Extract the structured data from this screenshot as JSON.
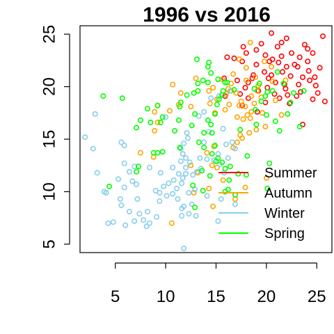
{
  "chart_data": {
    "type": "scatter",
    "title": "1996 vs 2016",
    "xlabel": "",
    "ylabel": "",
    "xlim": [
      1.5,
      26.5
    ],
    "ylim": [
      4.2,
      25.8
    ],
    "xticks": [
      5,
      10,
      15,
      20,
      25
    ],
    "yticks": [
      5,
      10,
      15,
      20,
      25
    ],
    "grid": false,
    "legend_position": "bottom-right",
    "series": [
      {
        "name": "Summer",
        "color": "#ff0000",
        "points": [
          [
            20.5,
            25.1
          ],
          [
            22,
            24.6
          ],
          [
            21.5,
            24.2
          ],
          [
            23.8,
            24
          ],
          [
            21.1,
            23.8
          ],
          [
            19,
            23.5
          ],
          [
            24.1,
            23.6
          ],
          [
            18,
            23.2
          ],
          [
            19.9,
            23
          ],
          [
            23.3,
            22.8
          ],
          [
            25.6,
            24.8
          ],
          [
            24.6,
            23.2
          ],
          [
            20.6,
            22.6
          ],
          [
            21.2,
            22.3
          ],
          [
            22,
            21.9
          ],
          [
            23.1,
            21.9
          ],
          [
            24.1,
            22.4
          ],
          [
            25.3,
            21.8
          ],
          [
            19,
            22.1
          ],
          [
            17.6,
            22.4
          ],
          [
            16.8,
            22.7
          ],
          [
            19.8,
            21.4
          ],
          [
            20.5,
            21.1
          ],
          [
            21.6,
            21.4
          ],
          [
            22.4,
            21
          ],
          [
            23.6,
            20.9
          ],
          [
            24.3,
            20.6
          ],
          [
            18.6,
            20.8
          ],
          [
            17.1,
            20.6
          ],
          [
            15.8,
            20.8
          ],
          [
            20.9,
            20.4
          ],
          [
            21.8,
            20.2
          ],
          [
            23.2,
            20.2
          ],
          [
            24.9,
            20.1
          ],
          [
            17.9,
            19.9
          ],
          [
            19.2,
            19.6
          ],
          [
            20.8,
            19.3
          ],
          [
            22.1,
            19.2
          ],
          [
            23.4,
            19.5
          ],
          [
            25.1,
            19.4
          ],
          [
            18.2,
            18.9
          ],
          [
            21.3,
            18.9
          ],
          [
            24.6,
            18.8
          ],
          [
            17.6,
            18.2
          ],
          [
            19.9,
            18.5
          ],
          [
            22.3,
            18.4
          ],
          [
            23.6,
            16.4
          ],
          [
            19.1,
            17.6
          ],
          [
            17.4,
            19.3
          ],
          [
            15.9,
            19.1
          ],
          [
            20.2,
            20.8
          ],
          [
            22.8,
            22.1
          ],
          [
            24.8,
            20.9
          ],
          [
            18.7,
            21.1
          ],
          [
            21.5,
            22.9
          ],
          [
            20.1,
            19.9
          ],
          [
            23,
            19.1
          ],
          [
            25.8,
            18.6
          ],
          [
            18.2,
            20.4
          ],
          [
            21.9,
            19.8
          ],
          [
            16.1,
            22.8
          ],
          [
            20.3,
            22.4
          ],
          [
            22.5,
            23.2
          ],
          [
            24.2,
            21.5
          ],
          [
            19.5,
            24.1
          ],
          [
            17.7,
            23.8
          ]
        ]
      },
      {
        "name": "Autumn",
        "color": "#ffa500",
        "points": [
          [
            10.6,
            7
          ],
          [
            7.5,
            13.7
          ],
          [
            8.8,
            13.3
          ],
          [
            8.9,
            15.8
          ],
          [
            9.2,
            16.6
          ],
          [
            8.9,
            17.6
          ],
          [
            9.2,
            18.2
          ],
          [
            10.4,
            17.7
          ],
          [
            10.7,
            20.2
          ],
          [
            11.3,
            18.3
          ],
          [
            11.5,
            19.4
          ],
          [
            12.5,
            18.1
          ],
          [
            13,
            20.8
          ],
          [
            14.7,
            19.9
          ],
          [
            14.3,
            19.6
          ],
          [
            14.4,
            18.4
          ],
          [
            15.1,
            18.8
          ],
          [
            14.9,
            17.5
          ],
          [
            16,
            19.3
          ],
          [
            16.5,
            19.6
          ],
          [
            16.5,
            20.3
          ],
          [
            16.2,
            19.8
          ],
          [
            17,
            19.4
          ],
          [
            17.5,
            18.6
          ],
          [
            17.3,
            18.2
          ],
          [
            17.1,
            17.1
          ],
          [
            17.7,
            16.9
          ],
          [
            18.4,
            17
          ],
          [
            18.5,
            17.6
          ],
          [
            18.8,
            18.4
          ],
          [
            18.5,
            19.1
          ],
          [
            18,
            20.6
          ],
          [
            18,
            21.8
          ],
          [
            18.4,
            24.2
          ],
          [
            19.8,
            22.4
          ],
          [
            20.5,
            21.9
          ],
          [
            20.6,
            20.5
          ],
          [
            19.1,
            19.6
          ],
          [
            19.6,
            17.5
          ],
          [
            19.9,
            16.2
          ],
          [
            19,
            15.9
          ],
          [
            18.3,
            15.6
          ],
          [
            17.4,
            15.4
          ],
          [
            17.1,
            14.7
          ],
          [
            16.7,
            14.2
          ],
          [
            14.8,
            14.3
          ],
          [
            14.1,
            13.7
          ],
          [
            14.6,
            12.5
          ],
          [
            15.1,
            12.3
          ],
          [
            15.7,
            11.1
          ],
          [
            13.2,
            11.8
          ],
          [
            12.5,
            12.5
          ],
          [
            12.8,
            9.9
          ],
          [
            14.7,
            8.6
          ],
          [
            17.9,
            10.4
          ],
          [
            16.9,
            9.3
          ],
          [
            20,
            11.3
          ],
          [
            21.5,
            17.3
          ],
          [
            17.9,
            18.1
          ],
          [
            19.2,
            20.1
          ],
          [
            16.7,
            21.2
          ],
          [
            15.6,
            20.7
          ],
          [
            17.3,
            22.6
          ],
          [
            18.9,
            20.9
          ],
          [
            19.5,
            19
          ],
          [
            20.9,
            18.7
          ],
          [
            21.9,
            20.6
          ],
          [
            16.3,
            18.3
          ],
          [
            15.9,
            17.8
          ],
          [
            18.1,
            17.3
          ],
          [
            17.6,
            15.1
          ],
          [
            14.3,
            10.3
          ]
        ]
      },
      {
        "name": "Winter",
        "color": "#87ceeb",
        "points": [
          [
            3,
            17.4
          ],
          [
            2,
            15.2
          ],
          [
            2.8,
            14.1
          ],
          [
            3.2,
            11.8
          ],
          [
            4.1,
            9.9
          ],
          [
            4.3,
            7
          ],
          [
            4.8,
            7.1
          ],
          [
            5.6,
            8.7
          ],
          [
            5.5,
            9.3
          ],
          [
            5.9,
            10.4
          ],
          [
            5.3,
            11.2
          ],
          [
            5.9,
            12.7
          ],
          [
            5.6,
            14.7
          ],
          [
            5.9,
            14.4
          ],
          [
            6.4,
            11.9
          ],
          [
            6.9,
            12.4
          ],
          [
            7.1,
            10.7
          ],
          [
            6.4,
            8.1
          ],
          [
            6.9,
            7.2
          ],
          [
            6,
            6.8
          ],
          [
            7.4,
            7.9
          ],
          [
            7.8,
            7.3
          ],
          [
            8.2,
            8.1
          ],
          [
            8.4,
            7
          ],
          [
            9.1,
            7.6
          ],
          [
            9.4,
            9.1
          ],
          [
            9,
            10.1
          ],
          [
            9.4,
            9.9
          ],
          [
            9.8,
            10.5
          ],
          [
            10.1,
            9.6
          ],
          [
            10.3,
            10.8
          ],
          [
            10.8,
            11.1
          ],
          [
            10.7,
            9.8
          ],
          [
            11.1,
            10.3
          ],
          [
            11.2,
            9.3
          ],
          [
            11.6,
            10.8
          ],
          [
            11.7,
            11.3
          ],
          [
            12,
            11.7
          ],
          [
            12.4,
            12.8
          ],
          [
            12,
            13.2
          ],
          [
            11.7,
            13.6
          ],
          [
            11.8,
            14.6
          ],
          [
            12.1,
            15.6
          ],
          [
            12.2,
            15.1
          ],
          [
            11.5,
            14.1
          ],
          [
            11.5,
            12.9
          ],
          [
            10.7,
            12.3
          ],
          [
            11.3,
            11.7
          ],
          [
            12.7,
            11.6
          ],
          [
            12.9,
            10.2
          ],
          [
            13.1,
            11.9
          ],
          [
            13.5,
            12.2
          ],
          [
            13.4,
            13.2
          ],
          [
            14.1,
            13.1
          ],
          [
            13.8,
            14.7
          ],
          [
            14.3,
            15.7
          ],
          [
            13.3,
            17.2
          ],
          [
            13.8,
            17.6
          ],
          [
            14.5,
            18.9
          ],
          [
            15.3,
            19.1
          ],
          [
            16.4,
            19.6
          ],
          [
            15.7,
            16
          ],
          [
            16,
            14.5
          ],
          [
            15.2,
            13.6
          ],
          [
            14.8,
            13
          ],
          [
            15.4,
            12.6
          ],
          [
            15.8,
            11.8
          ],
          [
            16.2,
            13.2
          ],
          [
            16.6,
            14.7
          ],
          [
            16.9,
            14.1
          ],
          [
            12.3,
            9.9
          ],
          [
            11.8,
            8.6
          ],
          [
            13,
            7.7
          ],
          [
            12.3,
            7.9
          ],
          [
            11.6,
            8.4
          ],
          [
            12.6,
            8.8
          ],
          [
            11.6,
            7.7
          ],
          [
            8.1,
            6.7
          ],
          [
            11.8,
            4.6
          ],
          [
            7.2,
            9.3
          ],
          [
            14.1,
            9.6
          ],
          [
            15.5,
            9.3
          ],
          [
            15.2,
            7.2
          ],
          [
            16.9,
            8.8
          ],
          [
            10,
            17.1
          ],
          [
            12,
            12.3
          ],
          [
            9.5,
            11.8
          ],
          [
            3.9,
            10
          ],
          [
            6.7,
            11
          ],
          [
            8.4,
            12.3
          ]
        ]
      },
      {
        "name": "Spring",
        "color": "#00ff00",
        "points": [
          [
            3.8,
            19.1
          ],
          [
            5.7,
            18.9
          ],
          [
            4.4,
            10.5
          ],
          [
            7.1,
            11.9
          ],
          [
            7.3,
            12.4
          ],
          [
            7.1,
            16.1
          ],
          [
            8.5,
            16.6
          ],
          [
            7.5,
            16.8
          ],
          [
            8.2,
            17.9
          ],
          [
            9.2,
            18.2
          ],
          [
            9.5,
            16.6
          ],
          [
            8.8,
            13.7
          ],
          [
            9.2,
            13.7
          ],
          [
            9.7,
            13.8
          ],
          [
            9.7,
            17.1
          ],
          [
            10.9,
            15.8
          ],
          [
            11.3,
            16.8
          ],
          [
            11.4,
            18.1
          ],
          [
            11.5,
            18.5
          ],
          [
            12.9,
            17.4
          ],
          [
            12.8,
            19.4
          ],
          [
            12.1,
            19.2
          ],
          [
            13.2,
            19.6
          ],
          [
            13.2,
            20.3
          ],
          [
            13.7,
            20.6
          ],
          [
            14.2,
            20.4
          ],
          [
            13.1,
            22.6
          ],
          [
            14.3,
            22.3
          ],
          [
            14.2,
            21.9
          ],
          [
            14.5,
            21.3
          ],
          [
            15.2,
            20.7
          ],
          [
            15.9,
            20.4
          ],
          [
            16.1,
            20.4
          ],
          [
            16.8,
            19.7
          ],
          [
            15.7,
            19.6
          ],
          [
            15.6,
            19.2
          ],
          [
            15.3,
            18.8
          ],
          [
            15.1,
            18.3
          ],
          [
            14.9,
            17.4
          ],
          [
            14.5,
            16.4
          ],
          [
            14.2,
            16.8
          ],
          [
            14.6,
            15.6
          ],
          [
            13.8,
            15.6
          ],
          [
            13.8,
            14.2
          ],
          [
            14.6,
            13.6
          ],
          [
            15,
            12.9
          ],
          [
            15.6,
            12.8
          ],
          [
            15.9,
            12.2
          ],
          [
            16.4,
            12.4
          ],
          [
            16.3,
            11.1
          ],
          [
            16.2,
            10.2
          ],
          [
            16.9,
            9.7
          ],
          [
            18,
            11.6
          ],
          [
            20.3,
            12.7
          ],
          [
            20.1,
            10.3
          ],
          [
            17.2,
            11.7
          ],
          [
            18.9,
            17.8
          ],
          [
            19.5,
            18.6
          ],
          [
            20,
            17.3
          ],
          [
            19,
            16.4
          ],
          [
            19.9,
            19.1
          ],
          [
            20.1,
            19.5
          ],
          [
            20.6,
            19.6
          ],
          [
            21.1,
            21.4
          ],
          [
            21.7,
            20.3
          ],
          [
            22.1,
            17.4
          ],
          [
            22.7,
            19.4
          ],
          [
            23.7,
            19.6
          ],
          [
            22.4,
            18.5
          ],
          [
            21.3,
            15.8
          ],
          [
            20.9,
            16.7
          ],
          [
            18.8,
            19.8
          ],
          [
            13.7,
            10.1
          ],
          [
            15.9,
            10
          ],
          [
            14.4,
            11.5
          ],
          [
            15.2,
            13.2
          ],
          [
            18.1,
            13.4
          ],
          [
            12.9,
            8.5
          ],
          [
            11.4,
            14.2
          ],
          [
            13.3,
            14.7
          ],
          [
            12.6,
            16.3
          ],
          [
            17.4,
            15.9
          ],
          [
            19.3,
            20.3
          ],
          [
            23.3,
            16.2
          ],
          [
            12.7,
            10.6
          ],
          [
            13.6,
            12
          ],
          [
            14.9,
            14.4
          ]
        ]
      }
    ]
  }
}
